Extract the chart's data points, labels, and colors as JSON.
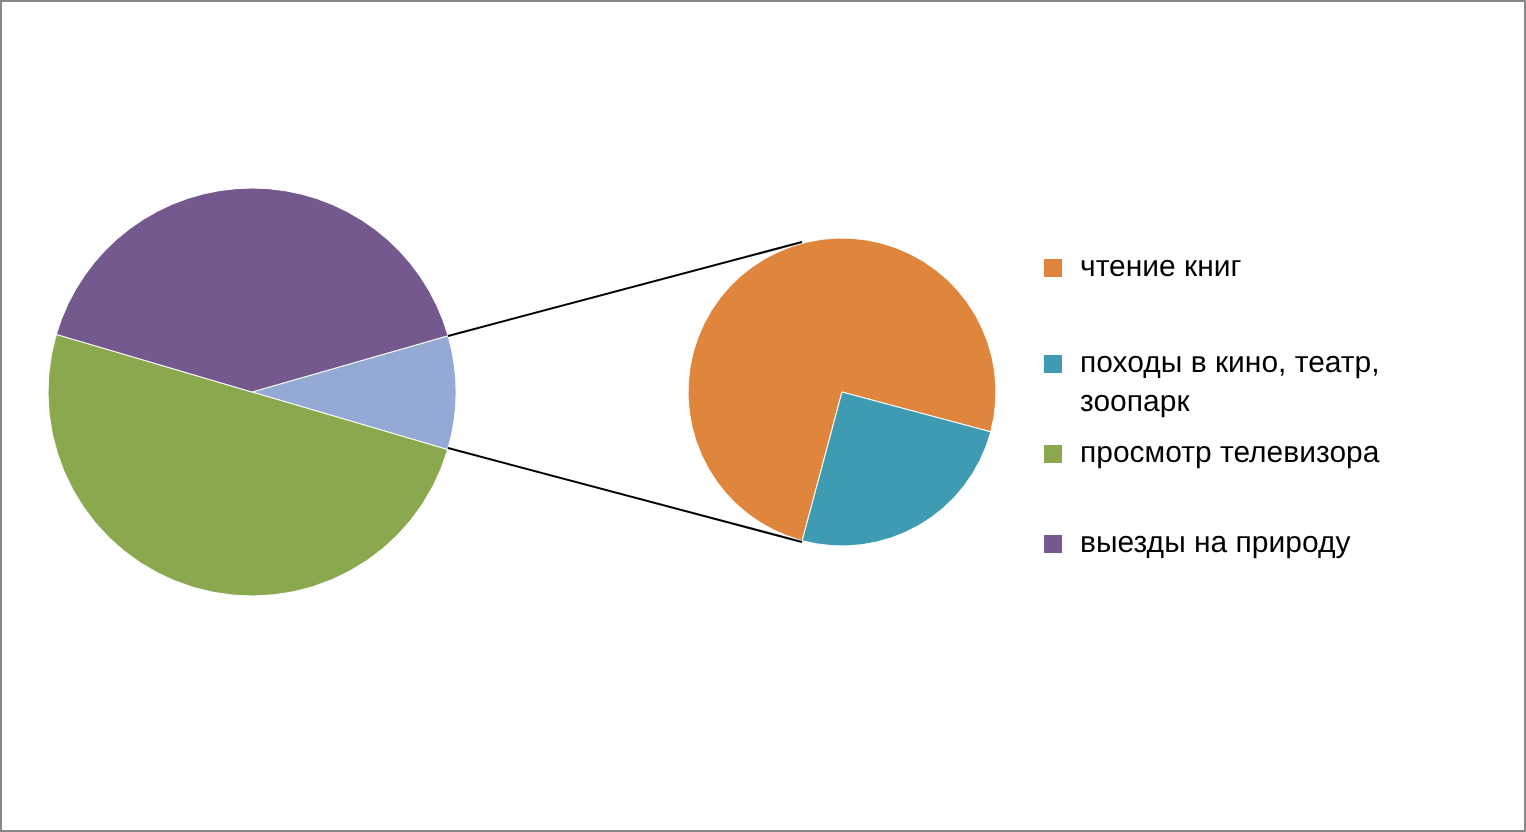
{
  "chart_data": [
    {
      "type": "pie",
      "categories": [
        null,
        "просмотр телевизора",
        "выезды на природу"
      ],
      "values": [
        9,
        50,
        41
      ],
      "colors": [
        "#94a9d3",
        "#8aa84e",
        "#74598f"
      ],
      "legend": "right"
    },
    {
      "type": "pie",
      "categories": [
        "чтение книг",
        "походы в кино, театр, зоопарк"
      ],
      "values": [
        75,
        25
      ],
      "colors": [
        "#e0853c",
        "#3f9bb1"
      ],
      "legend": "right"
    }
  ]
}
